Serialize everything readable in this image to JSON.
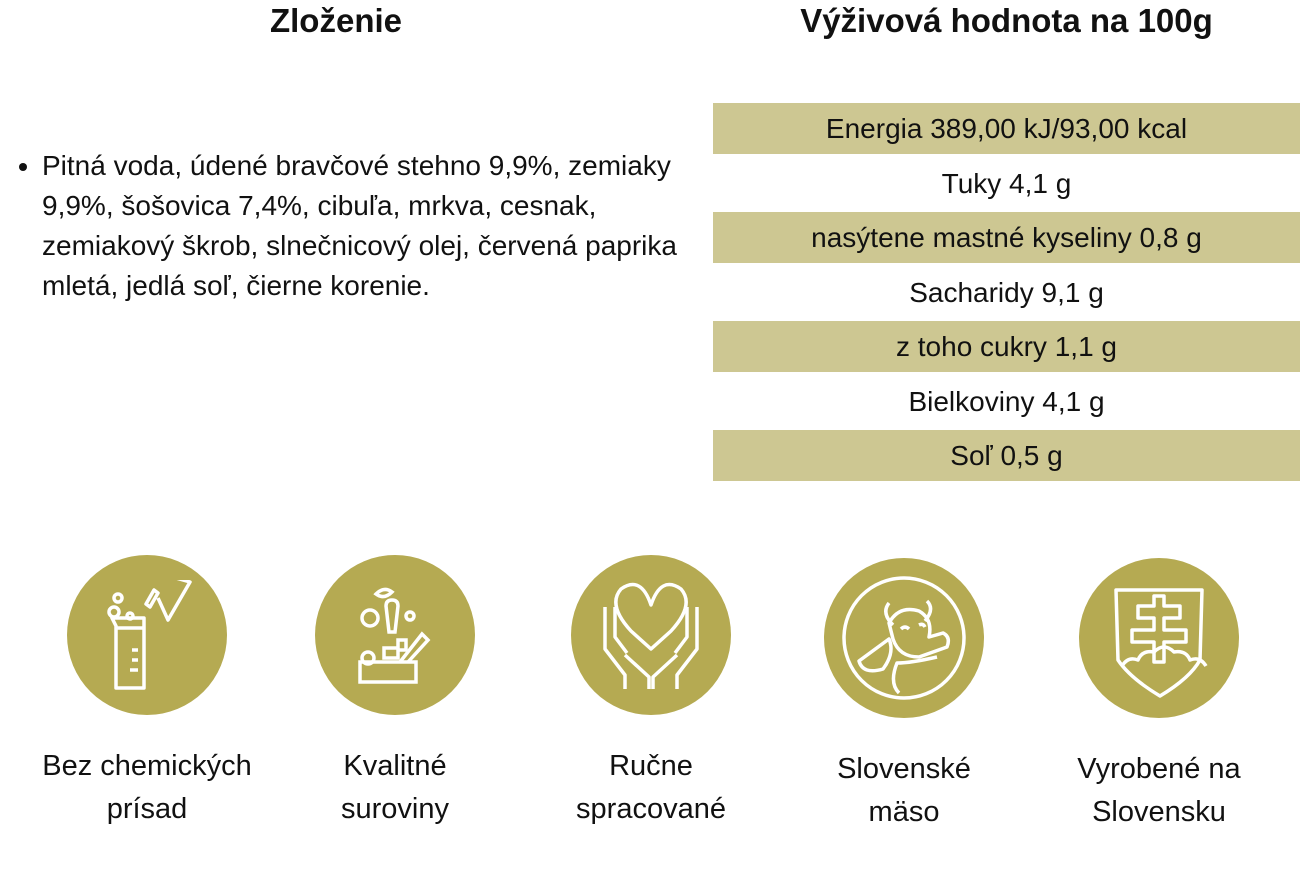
{
  "ingredients": {
    "title": "Zloženie",
    "text": "Pitná voda, údené bravčové stehno 9,9%, zemiaky 9,9%, šošovica 7,4%, cibuľa, mrkva, cesnak, zemiakový škrob, slnečnicový olej, červená paprika mletá, jedlá soľ, čierne korenie."
  },
  "nutrition": {
    "title": "Výživová hodnota na 100g",
    "rows": [
      "Energia 389,00 kJ/93,00 kcal",
      "Tuky 4,1 g",
      "nasýtene mastné kyseliny 0,8 g",
      "Sacharidy 9,1 g",
      "z toho cukry 1,1 g",
      "Bielkoviny 4,1 g",
      "Soľ 0,5 g"
    ]
  },
  "features": [
    {
      "line1": "Bez chemických",
      "line2": "prísad",
      "icon": "chemistry-icon"
    },
    {
      "line1": "Kvalitné",
      "line2": "suroviny",
      "icon": "vegetables-icon"
    },
    {
      "line1": "Ručne",
      "line2": "spracované",
      "icon": "hands-heart-icon"
    },
    {
      "line1": "Slovenské",
      "line2": "mäso",
      "icon": "cow-icon"
    },
    {
      "line1": "Vyrobené na",
      "line2": "Slovensku",
      "icon": "slovak-coat-of-arms-icon"
    }
  ],
  "colors": {
    "accent": "#b5aa52",
    "stripe": "#cdc792"
  }
}
